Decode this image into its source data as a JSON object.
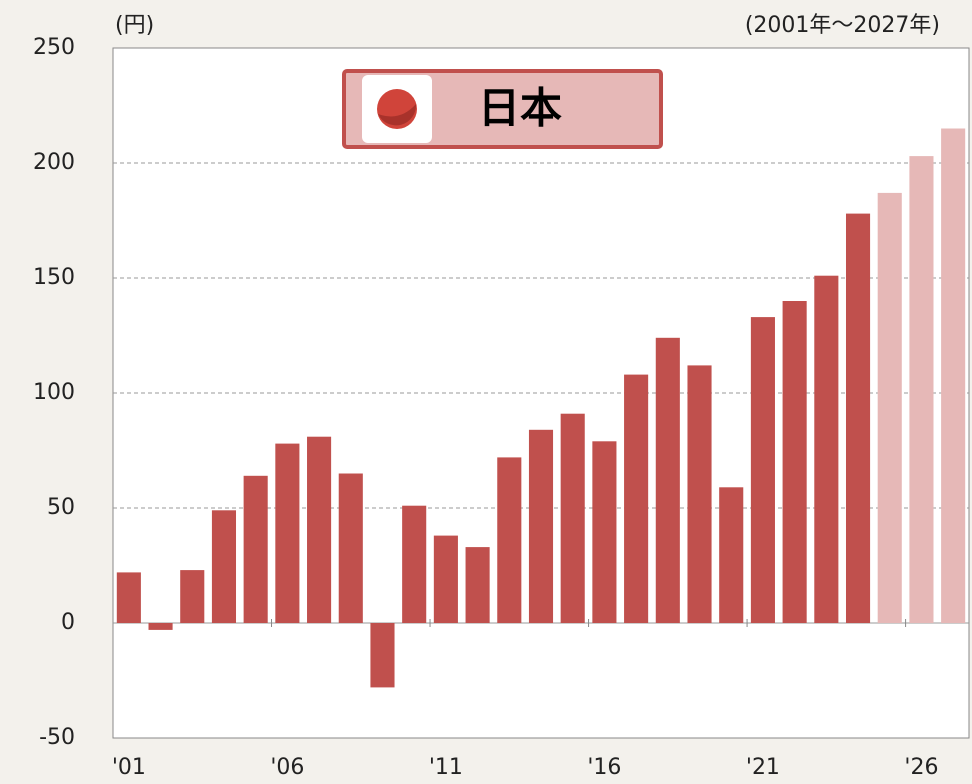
{
  "chart_data": {
    "type": "bar",
    "unit_label": "(円)",
    "period_label": "(2001年～2027年)",
    "legend_label": "日本",
    "categories": [
      "'01",
      null,
      null,
      null,
      null,
      "'06",
      null,
      null,
      null,
      null,
      "'11",
      null,
      null,
      null,
      null,
      "'16",
      null,
      null,
      null,
      null,
      "'21",
      null,
      null,
      null,
      null,
      "'26",
      null
    ],
    "values": [
      22,
      -3,
      23,
      49,
      64,
      78,
      81,
      65,
      -28,
      51,
      38,
      33,
      72,
      84,
      91,
      79,
      108,
      124,
      112,
      59,
      133,
      140,
      151,
      178,
      187,
      203,
      215
    ],
    "colors": [
      "#c0504d",
      "#c0504d",
      "#c0504d",
      "#c0504d",
      "#c0504d",
      "#c0504d",
      "#c0504d",
      "#c0504d",
      "#c0504d",
      "#c0504d",
      "#c0504d",
      "#c0504d",
      "#c0504d",
      "#c0504d",
      "#c0504d",
      "#c0504d",
      "#c0504d",
      "#c0504d",
      "#c0504d",
      "#c0504d",
      "#c0504d",
      "#c0504d",
      "#c0504d",
      "#c0504d",
      "#e6b8b7",
      "#e6b8b7",
      "#e6b8b7"
    ],
    "ylim": [
      -50,
      250
    ],
    "yticks": [
      -50,
      0,
      50,
      100,
      150,
      200,
      250
    ],
    "grid": true
  }
}
